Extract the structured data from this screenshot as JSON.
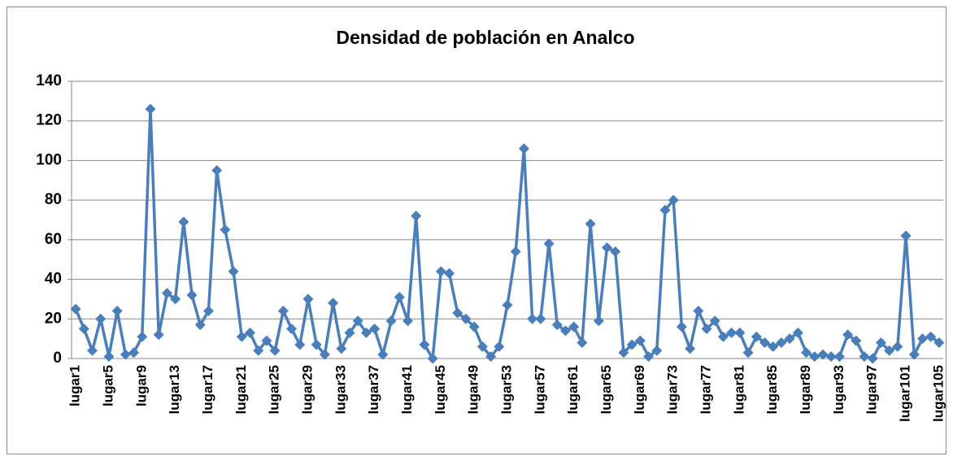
{
  "chart_data": {
    "type": "line",
    "title": "Densidad de población en  Analco",
    "categories": [
      "lugar1",
      null,
      null,
      null,
      "lugar5",
      null,
      null,
      null,
      "lugar9",
      null,
      null,
      null,
      "lugar13",
      null,
      null,
      null,
      "lugar17",
      null,
      null,
      null,
      "lugar21",
      null,
      null,
      null,
      "lugar25",
      null,
      null,
      null,
      "lugar29",
      null,
      null,
      null,
      "lugar33",
      null,
      null,
      null,
      "lugar37",
      null,
      null,
      null,
      "lugar41",
      null,
      null,
      null,
      "lugar45",
      null,
      null,
      null,
      "lugar49",
      null,
      null,
      null,
      "lugar53",
      null,
      null,
      null,
      "lugar57",
      null,
      null,
      null,
      "lugar61",
      null,
      null,
      null,
      "lugar65",
      null,
      null,
      null,
      "lugar69",
      null,
      null,
      null,
      "lugar73",
      null,
      null,
      null,
      "lugar77",
      null,
      null,
      null,
      "lugar81",
      null,
      null,
      null,
      "lugar85",
      null,
      null,
      null,
      "lugar89",
      null,
      null,
      null,
      "lugar93",
      null,
      null,
      null,
      "lugar97",
      null,
      null,
      null,
      "lugar101",
      null,
      null,
      null,
      "lugar105"
    ],
    "values": [
      25,
      15,
      4,
      20,
      1,
      24,
      2,
      3,
      11,
      126,
      12,
      33,
      30,
      69,
      32,
      17,
      24,
      95,
      65,
      44,
      11,
      13,
      4,
      9,
      4,
      24,
      15,
      7,
      30,
      7,
      2,
      28,
      5,
      13,
      19,
      13,
      15,
      2,
      19,
      31,
      19,
      72,
      7,
      0,
      44,
      43,
      23,
      20,
      16,
      6,
      1,
      6,
      27,
      54,
      106,
      20,
      20,
      58,
      17,
      14,
      16,
      8,
      68,
      19,
      56,
      54,
      3,
      7,
      9,
      1,
      4,
      75,
      80,
      16,
      5,
      24,
      15,
      19,
      11,
      13,
      13,
      3,
      11,
      8,
      6,
      8,
      10,
      13,
      3,
      1,
      2,
      1,
      1,
      12,
      9,
      1,
      0,
      8,
      4,
      6,
      62,
      2,
      10,
      11,
      8
    ],
    "color": "#4a7ebb",
    "ylim": [
      0,
      140
    ],
    "yticks": [
      0,
      20,
      40,
      60,
      80,
      100,
      120,
      140
    ],
    "grid": true
  }
}
